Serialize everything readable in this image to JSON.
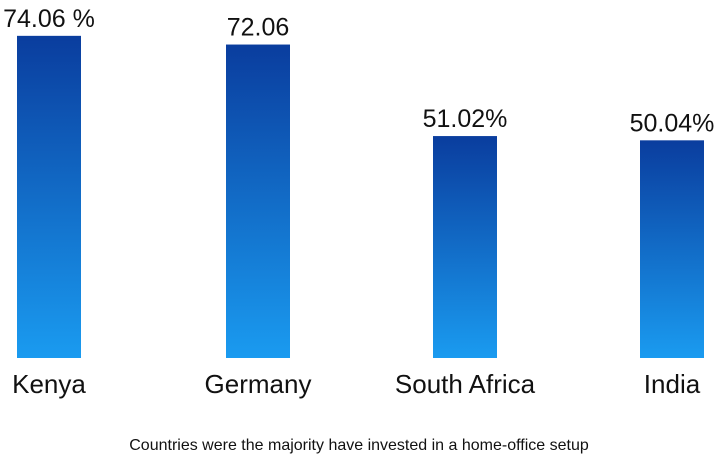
{
  "chart_data": {
    "type": "bar",
    "categories": [
      "Kenya",
      "Germany",
      "South Africa",
      "India"
    ],
    "values": [
      74.06,
      72.06,
      51.02,
      50.04
    ],
    "value_labels": [
      "74.06 %",
      "72.06",
      "51.02%",
      "50.04%"
    ],
    "caption": "Countries were the majority have invested in a home-office setup",
    "gradient": {
      "top": "#0a3d9e",
      "bottom": "#1a9bf0"
    },
    "grid": false,
    "legend": "none"
  }
}
